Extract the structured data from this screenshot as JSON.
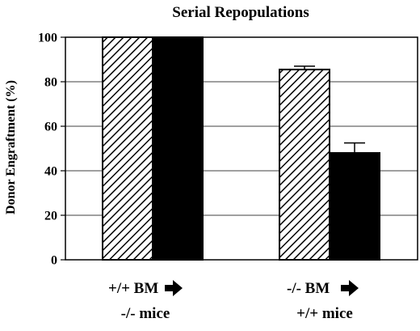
{
  "chart_data": {
    "type": "bar",
    "title": "Serial Repopulations",
    "ylabel": "Donor Engraftment (%)",
    "xlabel": "",
    "ylim": [
      0,
      100
    ],
    "yticks": [
      "0",
      "20",
      "40",
      "60",
      "80",
      "100"
    ],
    "grid": "horizontal",
    "categories": [
      {
        "line1": "+/+ BM",
        "line2": "-/- mice"
      },
      {
        "line1": "-/- BM",
        "line2": "+/+ mice"
      }
    ],
    "series": [
      {
        "fill": "hatched",
        "values": [
          100,
          85.5
        ],
        "error": [
          0,
          1.5
        ]
      },
      {
        "fill": "solid",
        "color": "#000000",
        "values": [
          100,
          48
        ],
        "error": [
          0,
          4.5
        ]
      }
    ],
    "arrow_icon": "right-arrow-icon"
  }
}
